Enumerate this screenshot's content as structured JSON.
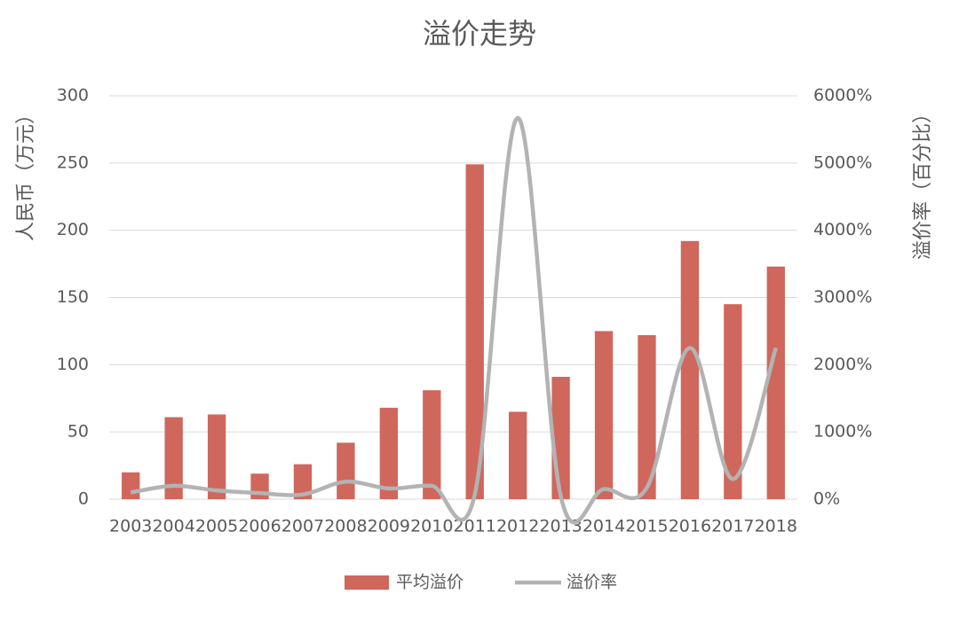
{
  "chart_data": {
    "type": "bar-line",
    "title": "溢价走势",
    "y_label": "人民币（万元）",
    "y2_label": "溢价率（百分比）",
    "categories": [
      "2003",
      "2004",
      "2005",
      "2006",
      "2007",
      "2008",
      "2009",
      "2010",
      "2011",
      "2012",
      "2013",
      "2014",
      "2015",
      "2016",
      "2017",
      "2018"
    ],
    "series": [
      {
        "name": "平均溢价",
        "type": "bar",
        "color": "#cf675c",
        "values": [
          20,
          61,
          63,
          19,
          26,
          42,
          68,
          81,
          249,
          65,
          91,
          125,
          122,
          192,
          145,
          173
        ]
      },
      {
        "name": "溢价率",
        "type": "line",
        "axis": "y2",
        "color": "#b3b3b3",
        "smooth": true,
        "values": [
          100,
          200,
          130,
          90,
          70,
          260,
          160,
          200,
          70,
          5670,
          40,
          150,
          170,
          2250,
          300,
          2250
        ]
      }
    ],
    "ylim": [
      0,
      300
    ],
    "yticks": [
      0,
      50,
      100,
      150,
      200,
      250,
      300
    ],
    "y2lim": [
      0,
      6000
    ],
    "y2ticks": [
      {
        "value": 0,
        "label": "0%"
      },
      {
        "value": 1000,
        "label": "1000%"
      },
      {
        "value": 2000,
        "label": "2000%"
      },
      {
        "value": 3000,
        "label": "3000%"
      },
      {
        "value": 4000,
        "label": "4000%"
      },
      {
        "value": 5000,
        "label": "5000%"
      },
      {
        "value": 6000,
        "label": "6000%"
      }
    ],
    "grid": true,
    "legend": "bottom"
  }
}
